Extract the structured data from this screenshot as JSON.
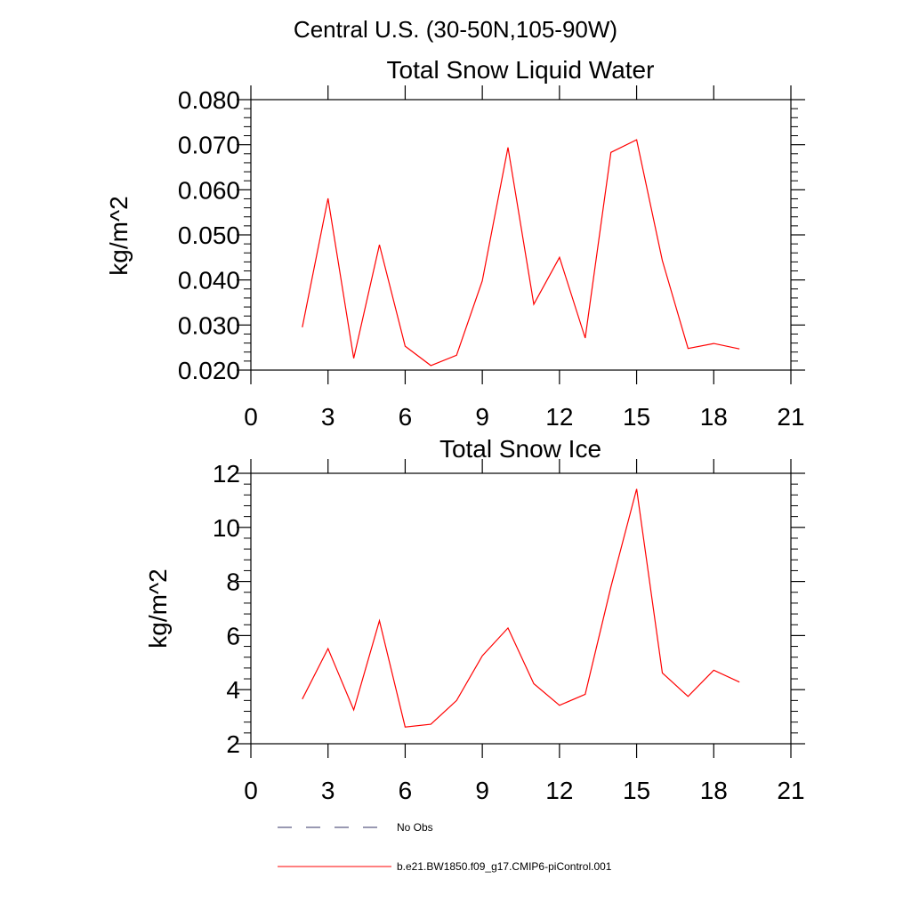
{
  "figure": {
    "region_title": "Central U.S. (30-50N,105-90W)"
  },
  "chart_data": [
    {
      "type": "line",
      "title": "Total Snow Liquid Water",
      "xlabel": "",
      "ylabel": "kg/m^2",
      "xlim": [
        0,
        21
      ],
      "ylim": [
        0.02,
        0.08
      ],
      "xticks": [
        0,
        3,
        6,
        9,
        12,
        15,
        18,
        21
      ],
      "xtick_labels": [
        "0",
        "3",
        "6",
        "9",
        "12",
        "15",
        "18",
        "21"
      ],
      "yticks": [
        0.02,
        0.03,
        0.04,
        0.05,
        0.06,
        0.07,
        0.08
      ],
      "ytick_labels": [
        "0.020",
        "0.030",
        "0.040",
        "0.050",
        "0.060",
        "0.070",
        "0.080"
      ],
      "grid": false,
      "series": [
        {
          "name": "b.e21.BW1850.f09_g17.CMIP6-piControl.001",
          "color": "#ff0000",
          "x": [
            2,
            3,
            4,
            5,
            6,
            7,
            8,
            9,
            10,
            11,
            12,
            13,
            14,
            15,
            16,
            17,
            18,
            19
          ],
          "y": [
            0.0295,
            0.0581,
            0.0226,
            0.0478,
            0.0253,
            0.021,
            0.0233,
            0.0398,
            0.0694,
            0.0346,
            0.045,
            0.0271,
            0.0683,
            0.0711,
            0.0443,
            0.0248,
            0.0259,
            0.0247
          ]
        }
      ]
    },
    {
      "type": "line",
      "title": "Total Snow Ice",
      "xlabel": "",
      "ylabel": "kg/m^2",
      "xlim": [
        0,
        21
      ],
      "ylim": [
        2,
        12
      ],
      "xticks": [
        0,
        3,
        6,
        9,
        12,
        15,
        18,
        21
      ],
      "xtick_labels": [
        "0",
        "3",
        "6",
        "9",
        "12",
        "15",
        "18",
        "21"
      ],
      "yticks": [
        2,
        4,
        6,
        8,
        10,
        12
      ],
      "ytick_labels": [
        "2",
        "4",
        "6",
        "8",
        "10",
        "12"
      ],
      "grid": false,
      "series": [
        {
          "name": "b.e21.BW1850.f09_g17.CMIP6-piControl.001",
          "color": "#ff0000",
          "x": [
            2,
            3,
            4,
            5,
            6,
            7,
            8,
            9,
            10,
            11,
            12,
            13,
            14,
            15,
            16,
            17,
            18,
            19
          ],
          "y": [
            3.65,
            5.52,
            3.25,
            6.55,
            2.62,
            2.72,
            3.6,
            5.25,
            6.28,
            4.22,
            3.42,
            3.83,
            7.8,
            11.42,
            4.62,
            3.75,
            4.72,
            4.28
          ]
        }
      ]
    }
  ],
  "legend": {
    "placement": "bottom-left",
    "entries": [
      {
        "label": "No Obs",
        "style": "dashed",
        "color": "#333366"
      },
      {
        "label": "b.e21.BW1850.f09_g17.CMIP6-piControl.001",
        "style": "solid",
        "color": "#ff0000"
      }
    ]
  }
}
